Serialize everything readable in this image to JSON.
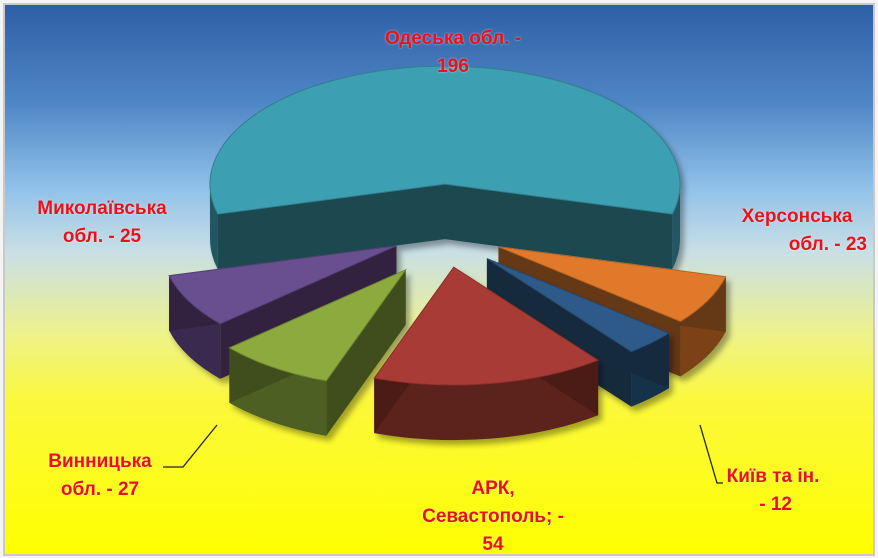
{
  "chart_data": {
    "type": "pie",
    "style": "3d-exploded",
    "slices": [
      {
        "label_lines": [
          "Одеська обл. -",
          "196"
        ],
        "value": 196,
        "color": "#3e9fb2"
      },
      {
        "label_lines": [
          "Херсонська",
          "обл. - 23"
        ],
        "value": 23,
        "color": "#e07a2c"
      },
      {
        "label_lines": [
          "Київ та ін.",
          " - 12"
        ],
        "value": 12,
        "color": "#2e5a8a"
      },
      {
        "label_lines": [
          "АРК,",
          "Севастополь; -",
          "54"
        ],
        "value": 54,
        "color": "#a83a35"
      },
      {
        "label_lines": [
          "Винницька",
          "обл. - 27"
        ],
        "value": 27,
        "color": "#8caa3c"
      },
      {
        "label_lines": [
          "Миколаївська",
          "обл. - 25"
        ],
        "value": 25,
        "color": "#6a4f90"
      }
    ]
  }
}
